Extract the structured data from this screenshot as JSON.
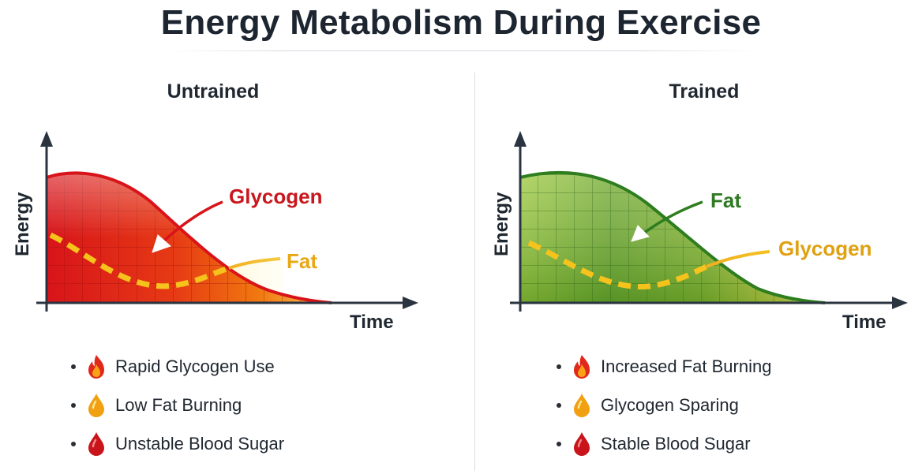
{
  "title": "Energy Metabolism During Exercise",
  "panels": [
    {
      "title": "Untrained",
      "axis_y_label": "Energy",
      "axis_x_label": "Time",
      "labels": {
        "primary_curve": "Glycogen",
        "secondary_curve": "Fat"
      },
      "colors": {
        "primary_curve": "#d8141a",
        "secondary_curve": "#f0b020",
        "label_primary": "#c8171d",
        "label_secondary": "#e8a814"
      },
      "bullets": [
        {
          "icon": "flame-icon",
          "text": "Rapid Glycogen Use"
        },
        {
          "icon": "drop-icon",
          "text": "Low Fat Burning"
        },
        {
          "icon": "blood-drop-icon",
          "text": "Unstable Blood Sugar"
        }
      ]
    },
    {
      "title": "Trained",
      "axis_y_label": "Energy",
      "axis_x_label": "Time",
      "labels": {
        "primary_curve": "Fat",
        "secondary_curve": "Glycogen"
      },
      "colors": {
        "primary_curve": "#2e7d1f",
        "secondary_curve": "#f0b020",
        "label_primary": "#2f7a22",
        "label_secondary": "#e0a010"
      },
      "bullets": [
        {
          "icon": "flame-icon",
          "text": "Increased Fat Burning"
        },
        {
          "icon": "drop-icon",
          "text": "Glycogen Sparing"
        },
        {
          "icon": "blood-drop-icon",
          "text": "Stable Blood Sugar"
        }
      ]
    }
  ]
}
